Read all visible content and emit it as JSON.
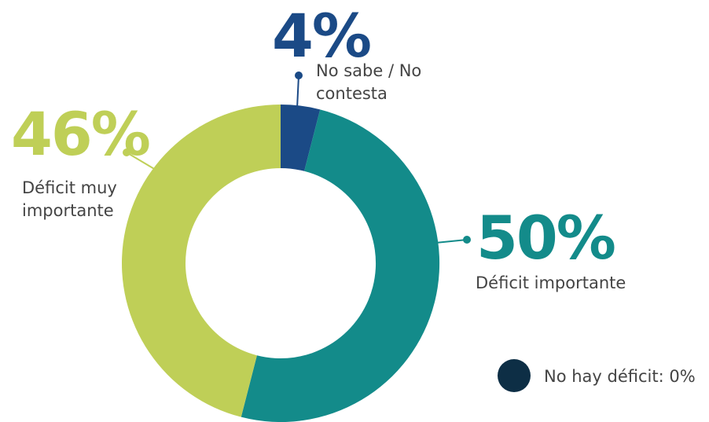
{
  "chart_data": {
    "type": "donut",
    "categories": [
      "No sabe / No contesta",
      "Déficit importante",
      "Déficit muy importante",
      "No hay déficit:"
    ],
    "values": [
      4,
      50,
      46,
      0
    ],
    "value_labels": [
      "4%",
      "50%",
      "46%",
      "0%"
    ],
    "colors": [
      "#1b4a86",
      "#138b8a",
      "#bfcf57",
      "#0d2e45"
    ]
  }
}
